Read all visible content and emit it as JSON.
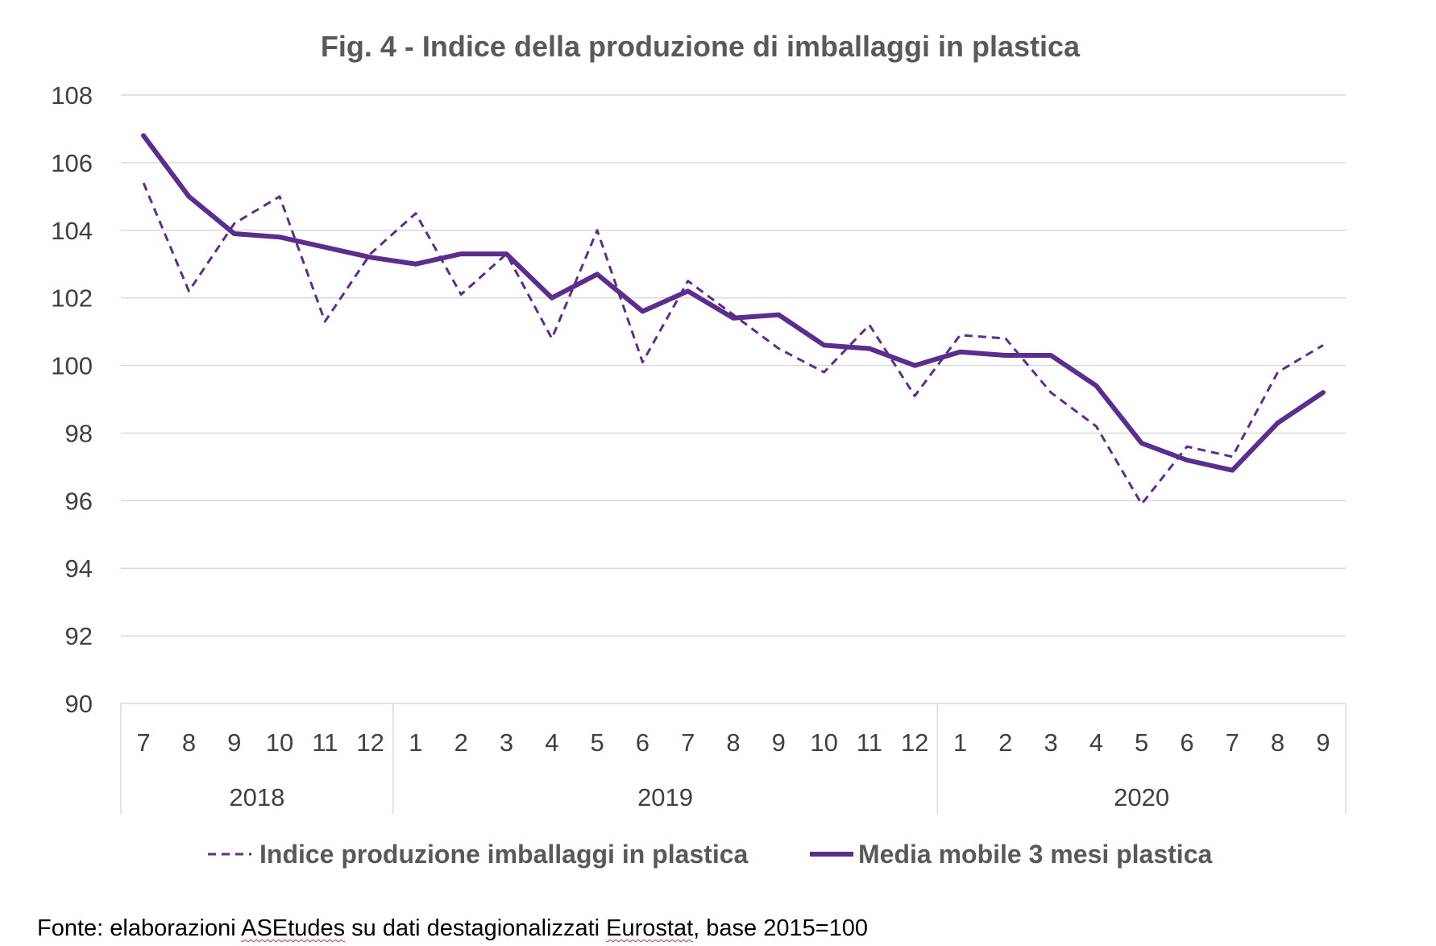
{
  "chart_data": {
    "type": "line",
    "title": "Fig. 4  - Indice della produzione di imballaggi in plastica",
    "x": [
      "7",
      "8",
      "9",
      "10",
      "11",
      "12",
      "1",
      "2",
      "3",
      "4",
      "5",
      "6",
      "7",
      "8",
      "9",
      "10",
      "11",
      "12",
      "1",
      "2",
      "3",
      "4",
      "5",
      "6",
      "7",
      "8",
      "9"
    ],
    "years": [
      {
        "label": "2018",
        "start": 0,
        "end": 5
      },
      {
        "label": "2019",
        "start": 6,
        "end": 17
      },
      {
        "label": "2020",
        "start": 18,
        "end": 26
      }
    ],
    "ylim": [
      90,
      108
    ],
    "yticks": [
      "90",
      "92",
      "94",
      "96",
      "98",
      "100",
      "102",
      "104",
      "106",
      "108"
    ],
    "grid": true,
    "legend_position": "bottom",
    "series": [
      {
        "name": "Indice produzione imballaggi in plastica",
        "style": "dashed",
        "color": "#5b2d8e",
        "values": [
          105.4,
          102.2,
          104.2,
          105.0,
          101.3,
          103.3,
          104.5,
          102.1,
          103.3,
          100.8,
          104.0,
          100.1,
          102.5,
          101.5,
          100.5,
          99.8,
          101.2,
          99.1,
          100.9,
          100.8,
          99.2,
          98.2,
          95.9,
          97.6,
          97.3,
          99.8,
          100.6
        ]
      },
      {
        "name": "Media mobile 3 mesi plastica",
        "style": "solid",
        "color": "#5b2d8e",
        "values": [
          106.8,
          105.0,
          103.9,
          103.8,
          103.5,
          103.2,
          103.0,
          103.3,
          103.3,
          102.0,
          102.7,
          101.6,
          102.2,
          101.4,
          101.5,
          100.6,
          100.5,
          100.0,
          100.4,
          100.3,
          100.3,
          99.4,
          97.7,
          97.2,
          96.9,
          98.3,
          99.2
        ]
      }
    ]
  },
  "source": {
    "prefix": "Fonte: elaborazioni ",
    "word1": "ASEtudes",
    "middle": " su dati destagionalizzati ",
    "word2": "Eurostat",
    "suffix": ", base 2015=100"
  }
}
